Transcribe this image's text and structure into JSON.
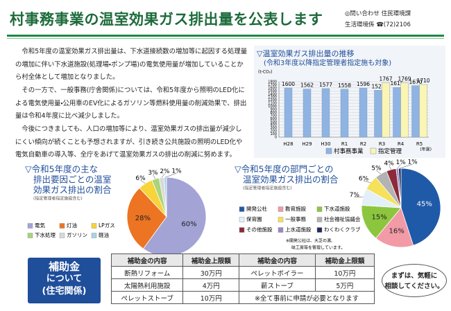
{
  "header": {
    "title": "村事務事業の温室効果ガス排出量を公表します",
    "contact": [
      "◎問い合わせ 住民環境課",
      "生活環境係 ☎(72)2106"
    ]
  },
  "body": [
    "令和5年度の温室効果ガス排出量は、下水道接続数の増加等に起因する処理量の増加に伴い下水道施設(処理場・ポンプ場)の電気使用量が増加していることから村全体として増加となりました。",
    "その一方で、一般事務(庁舎関係)については、令和5年度から照明のLED化による電気使用量・公用車のEV化によるガソリン等燃料使用量の削減効果で、排出量は令和4年度に比べ減少しました。",
    "今後につきましても、人口の増加等により、温室効果ガスの排出量が減少しにくい傾向が続くことも予想されますが、引き続き公共施設の照明のLED化や電気自動車の導入等、全庁をあげて温室効果ガスの排出の削減に努めます。"
  ],
  "chart_data": [
    {
      "type": "bar",
      "title": "▽温室効果ガス排出量の推移",
      "subtitle": "(令和3年度以降指定管理者指定施も対象)",
      "y_unit": "(t-CO₂)",
      "x_unit": "(年度)",
      "categories": [
        "H28",
        "H29",
        "H30",
        "R1",
        "R2",
        "R3",
        "R4",
        "R5"
      ],
      "series": [
        {
          "name": "村事務事業",
          "color": "#8fb4e3",
          "values": [
            1600,
            1562,
            1577,
            1558,
            1596,
            1523,
            1615,
            1670
          ]
        },
        {
          "name": "指定管理",
          "color": "#fbf5b4",
          "values": [
            null,
            null,
            null,
            null,
            null,
            1767,
            1769,
            1710
          ]
        }
      ],
      "ylim": [
        0,
        1800
      ],
      "yticks": [
        0,
        100,
        200,
        300,
        400,
        500,
        600,
        700,
        800,
        900,
        1000,
        1100,
        1200,
        1300,
        1400,
        1500,
        1600,
        1700,
        1800
      ],
      "grid": true
    },
    {
      "type": "pie",
      "title": [
        "▽令和5年度の主な",
        "排出要因ごとの温室",
        "効果ガス排出の割合"
      ],
      "subtitle": "(指定管理者指定施設含む)",
      "categories": [
        "電気",
        "灯油",
        "LPガス",
        "下水処理",
        "ガソリン",
        "軽油"
      ],
      "values": [
        60,
        28,
        6,
        3,
        2,
        1
      ],
      "value_labels": [
        "60%",
        "28%",
        "6%",
        "3%",
        "2%",
        "1%"
      ],
      "colors": [
        "#a3a3d6",
        "#ec7422",
        "#f6d43a",
        "#a9d47a",
        "#d9d9d9",
        "#a9d3ea"
      ]
    },
    {
      "type": "pie",
      "title": [
        "▽令和5年度の部門ごとの",
        "温室効果ガス排出の割合"
      ],
      "subtitle": "(指定管理者指定施設含む)",
      "categories": [
        "開発公社",
        "教育施設",
        "下水道施設",
        "保育園",
        "一般事務",
        "社会福祉協議会",
        "その他施設",
        "上水道施設",
        "わくわくクラブ"
      ],
      "values": [
        45,
        16,
        15,
        7,
        6,
        5,
        4,
        1,
        1
      ],
      "value_labels": [
        "45%",
        "16%",
        "15%",
        "7%",
        "6%",
        "5%",
        "4%",
        "1%",
        "1%"
      ],
      "colors": [
        "#1f5aa8",
        "#f29aa6",
        "#8cc63e",
        "#e3f0f8",
        "#f5e15a",
        "#b3b3b3",
        "#8b2a3a",
        "#9b86c4",
        "#1e2a5a"
      ],
      "note": [
        "※開発公社は、大芝の湯、",
        "味工房等を管理しています。"
      ]
    }
  ],
  "subsidy": {
    "label": [
      "補助金",
      "について",
      "(住宅関係)"
    ],
    "table": {
      "header": [
        "補助金の内容",
        "補助金上限額",
        "補助金の内容",
        "補助金上限額"
      ],
      "rows": [
        [
          "断熱リフォーム",
          "30万円",
          "ペレットボイラー",
          "10万円"
        ],
        [
          "太陽熱利用施設",
          "4万円",
          "薪ストーブ",
          "5万円"
        ],
        [
          "ペレットストーブ",
          "10万円",
          "※全て事前に申請が必要となります"
        ]
      ]
    },
    "bubble": [
      "まずは、気軽に",
      "相談してください。"
    ]
  }
}
